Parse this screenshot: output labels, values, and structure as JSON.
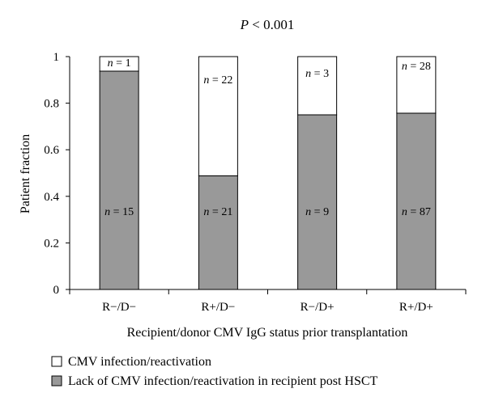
{
  "chart_data": {
    "type": "bar",
    "stacked": true,
    "title": "P < 0.001",
    "title_prefix": "P",
    "title_suffix": " < 0.001",
    "xlabel": "Recipient/donor CMV IgG status prior transplantation",
    "ylabel": "Patient fraction",
    "ylim": [
      0,
      1
    ],
    "yticks": [
      0,
      0.2,
      0.4,
      0.6,
      0.8,
      1
    ],
    "ytick_labels": [
      "0",
      "0.2",
      "0.4",
      "0.6",
      "0.8",
      "1"
    ],
    "grid": false,
    "legend_position": "bottom-left",
    "categories": [
      "R−/D−",
      "R+/D−",
      "R−/D+",
      "R+/D+"
    ],
    "series": [
      {
        "name": "Lack of CMV infection/reactivation in recipient post HSCT",
        "color": "#999999",
        "values": [
          0.9375,
          0.488,
          0.75,
          0.757
        ],
        "labels": [
          "n = 15",
          "n = 21",
          "n = 9",
          "n = 87"
        ]
      },
      {
        "name": "CMV infection/reactivation",
        "color": "#ffffff",
        "values": [
          0.0625,
          0.512,
          0.25,
          0.243
        ],
        "labels": [
          "n = 1",
          "n = 22",
          "n = 3",
          "n = 28"
        ]
      }
    ]
  }
}
